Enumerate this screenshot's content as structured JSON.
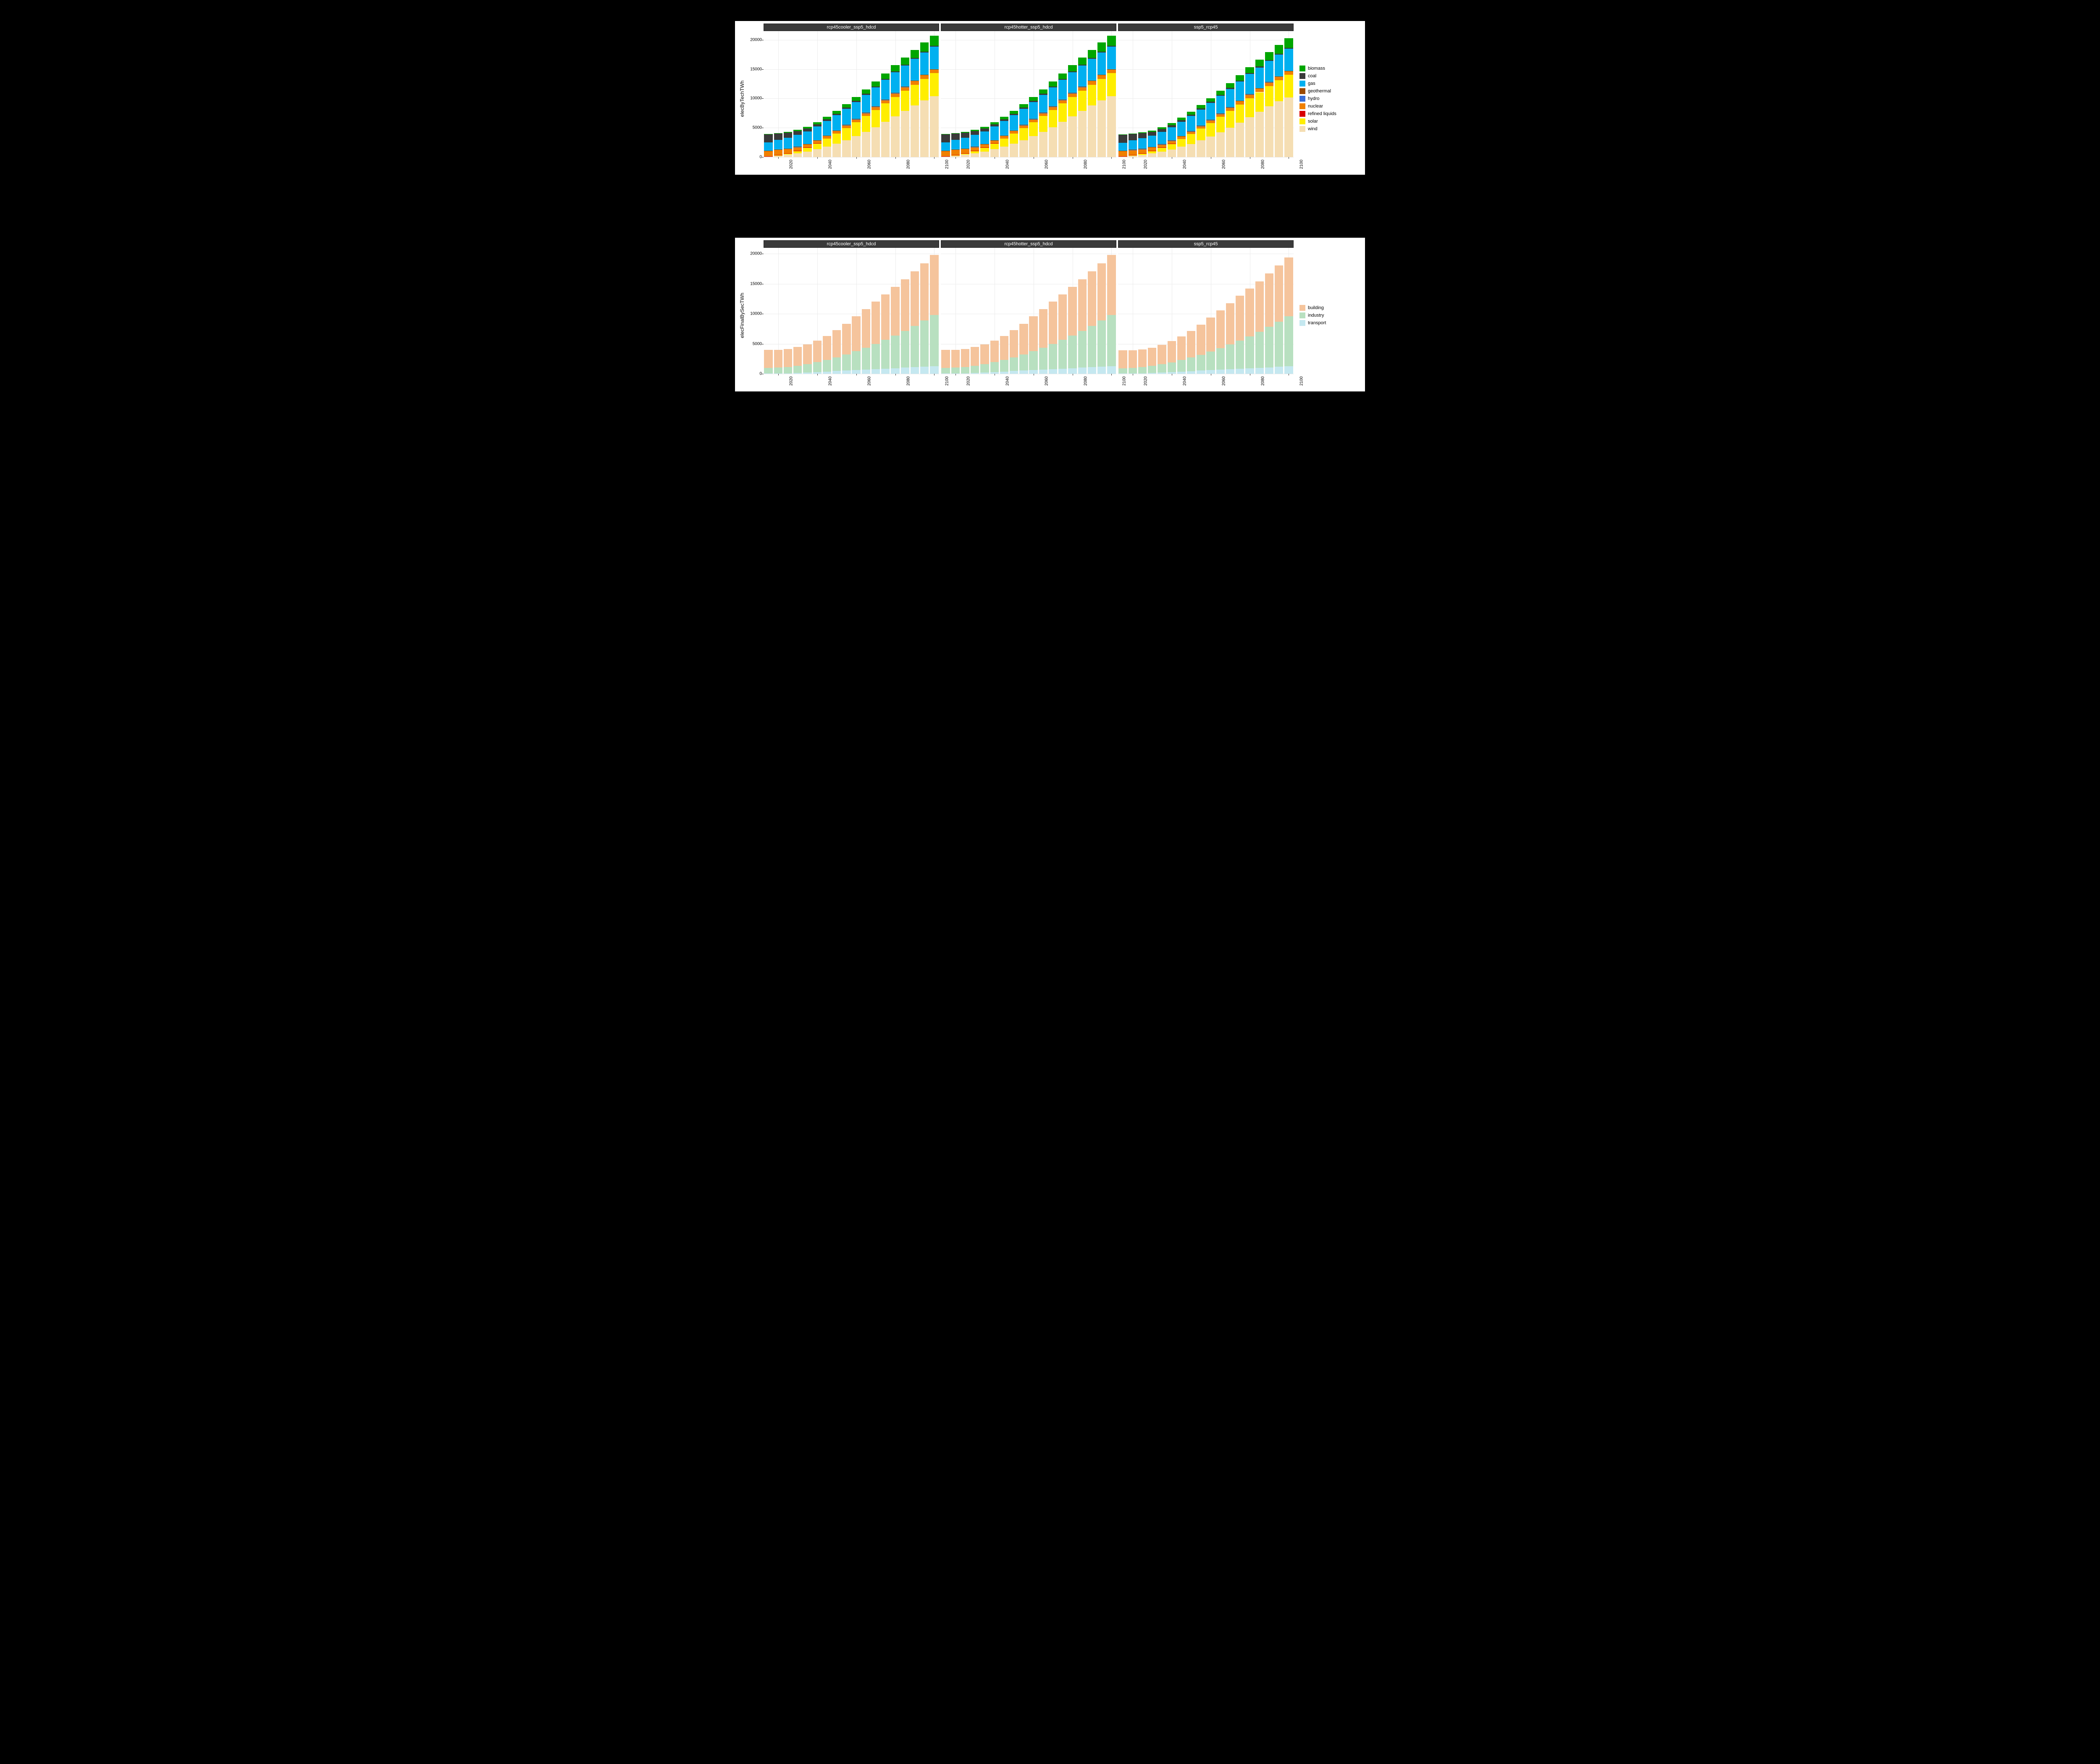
{
  "page_bg": "#000000",
  "panel_bg": "#ffffff",
  "grid_color": "#ebebeb",
  "facet_bg": "#3a3a3a",
  "facet_fg": "#ffffff",
  "years": [
    2015,
    2020,
    2025,
    2030,
    2035,
    2040,
    2045,
    2050,
    2055,
    2060,
    2065,
    2070,
    2075,
    2080,
    2085,
    2090,
    2095,
    2100
  ],
  "xtick_labels": [
    "2020",
    "2040",
    "2060",
    "2080",
    "2100"
  ],
  "xtick_years": [
    2020,
    2040,
    2060,
    2080,
    2100
  ],
  "panels": [
    {
      "label": "rcp45cooler_ssp5_hdcd",
      "scale": 1.0
    },
    {
      "label": "rcp45hotter_ssp5_hdcd",
      "scale": 1.0
    },
    {
      "label": "ssp5_rcp45",
      "scale": 0.98
    }
  ],
  "chart1": {
    "ylabel": "elecByTechTWh",
    "ylim": [
      0,
      21500
    ],
    "yticks": [
      0,
      5000,
      10000,
      15000,
      20000
    ],
    "stack_order": [
      "wind",
      "solar",
      "refined_liquids",
      "nuclear",
      "hydro",
      "geothermal",
      "gas",
      "coal",
      "biomass"
    ],
    "colors": {
      "biomass": "#00a600",
      "coal": "#3a3a3a",
      "gas": "#00b0f0",
      "geothermal": "#9c4a00",
      "hydro": "#3a6fd8",
      "nuclear": "#f08000",
      "refined_liquids": "#d80000",
      "solar": "#ffee00",
      "wind": "#f5deb3"
    },
    "legend_order": [
      "biomass",
      "coal",
      "gas",
      "geothermal",
      "hydro",
      "nuclear",
      "refined_liquids",
      "solar",
      "wind"
    ],
    "legend_labels": {
      "biomass": "biomass",
      "coal": "coal",
      "gas": "gas",
      "geothermal": "geothermal",
      "hydro": "hydro",
      "nuclear": "nuclear",
      "refined_liquids": "refined liquids",
      "solar": "solar",
      "wind": "wind"
    },
    "series": {
      "wind": [
        120,
        250,
        400,
        650,
        950,
        1350,
        1800,
        2300,
        2900,
        3550,
        4300,
        5100,
        6000,
        6950,
        7900,
        8850,
        9700,
        10400
      ],
      "solar": [
        30,
        120,
        250,
        450,
        700,
        1000,
        1350,
        1700,
        2050,
        2400,
        2700,
        2950,
        3150,
        3300,
        3400,
        3500,
        3650,
        3900
      ],
      "refined_liquids": [
        20,
        15,
        12,
        10,
        8,
        6,
        5,
        4,
        3,
        3,
        2,
        2,
        2,
        2,
        2,
        2,
        2,
        2
      ],
      "nuclear": [
        850,
        820,
        700,
        560,
        480,
        440,
        420,
        420,
        430,
        450,
        480,
        520,
        560,
        600,
        620,
        630,
        620,
        600
      ],
      "hydro": [
        60,
        60,
        60,
        60,
        60,
        60,
        60,
        60,
        60,
        60,
        60,
        60,
        60,
        60,
        60,
        60,
        60,
        60
      ],
      "geothermal": [
        20,
        25,
        30,
        35,
        40,
        45,
        50,
        55,
        55,
        55,
        50,
        45,
        40,
        35,
        30,
        25,
        20,
        20
      ],
      "gas": [
        1400,
        1650,
        1850,
        2000,
        2150,
        2300,
        2450,
        2600,
        2750,
        2900,
        3050,
        3200,
        3350,
        3500,
        3600,
        3700,
        3800,
        3900
      ],
      "coal": [
        1400,
        1050,
        850,
        650,
        500,
        380,
        300,
        260,
        230,
        210,
        200,
        190,
        180,
        170,
        160,
        150,
        140,
        130
      ],
      "biomass": [
        50,
        100,
        150,
        210,
        280,
        350,
        420,
        490,
        560,
        640,
        730,
        830,
        940,
        1060,
        1200,
        1360,
        1540,
        1700
      ]
    }
  },
  "chart2": {
    "ylabel": "elecFinalBySecTWh",
    "ylim": [
      0,
      21000
    ],
    "yticks": [
      0,
      5000,
      10000,
      15000,
      20000
    ],
    "stack_order": [
      "transport",
      "industry",
      "building"
    ],
    "colors": {
      "building": "#f5c49c",
      "industry": "#b8e0c0",
      "transport": "#c5e8f0"
    },
    "legend_order": [
      "building",
      "industry",
      "transport"
    ],
    "legend_labels": {
      "building": "building",
      "industry": "industry",
      "transport": "transport"
    },
    "series": {
      "transport": [
        50,
        70,
        100,
        150,
        220,
        300,
        380,
        460,
        540,
        620,
        700,
        780,
        860,
        940,
        1020,
        1100,
        1180,
        1260
      ],
      "industry": [
        900,
        950,
        1050,
        1200,
        1400,
        1650,
        1950,
        2300,
        2700,
        3150,
        3650,
        4200,
        4800,
        5450,
        6150,
        6900,
        7700,
        8550
      ],
      "building": [
        3050,
        3000,
        3000,
        3100,
        3300,
        3600,
        4000,
        4500,
        5100,
        5800,
        6450,
        7050,
        7600,
        8100,
        8580,
        9050,
        9520,
        10000
      ]
    }
  }
}
